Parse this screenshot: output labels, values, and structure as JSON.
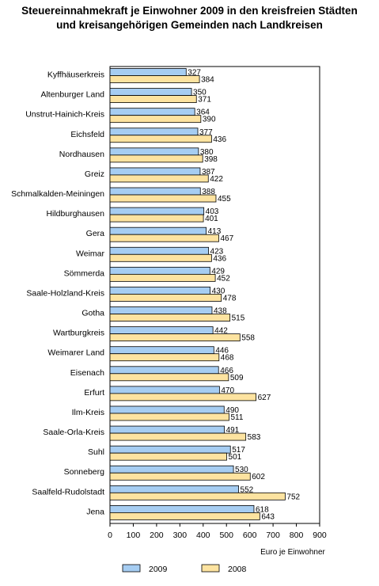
{
  "chart_data": {
    "type": "bar",
    "orientation": "horizontal",
    "title": "Steuereinnahmekraft je Einwohner 2009 in den kreisfreien Städten und kreisangehörigen Gemeinden nach Landkreisen",
    "title_lines": [
      "Steuereinnahmekraft je Einwohner 2009 in den kreisfreien Städten",
      "und kreisangehörigen Gemeinden nach Landkreisen"
    ],
    "xlabel": "Euro  je Einwohner",
    "xlim": [
      0,
      900
    ],
    "xticks": [
      0,
      100,
      200,
      300,
      400,
      500,
      600,
      700,
      800,
      900
    ],
    "grid": false,
    "legend_position": "bottom",
    "categories": [
      "Kyffhäuserkreis",
      "Altenburger Land",
      "Unstrut-Hainich-Kreis",
      "Eichsfeld",
      "Nordhausen",
      "Greiz",
      "Schmalkalden-Meiningen",
      "Hildburghausen",
      "Gera",
      "Weimar",
      "Sömmerda",
      "Saale-Holzland-Kreis",
      "Gotha",
      "Wartburgkreis",
      "Weimarer Land",
      "Eisenach",
      "Erfurt",
      "Ilm-Kreis",
      "Saale-Orla-Kreis",
      "Suhl",
      "Sonneberg",
      "Saalfeld-Rudolstadt",
      "Jena"
    ],
    "series": [
      {
        "name": "2009",
        "color": "#a6cdf2",
        "values": [
          327,
          350,
          364,
          377,
          380,
          387,
          388,
          403,
          413,
          423,
          429,
          430,
          438,
          442,
          446,
          466,
          470,
          490,
          491,
          517,
          530,
          552,
          618
        ]
      },
      {
        "name": "2008",
        "color": "#fde3a0",
        "values": [
          384,
          371,
          390,
          436,
          398,
          422,
          455,
          401,
          467,
          436,
          452,
          478,
          515,
          558,
          468,
          509,
          627,
          511,
          583,
          501,
          602,
          752,
          643
        ]
      }
    ]
  }
}
